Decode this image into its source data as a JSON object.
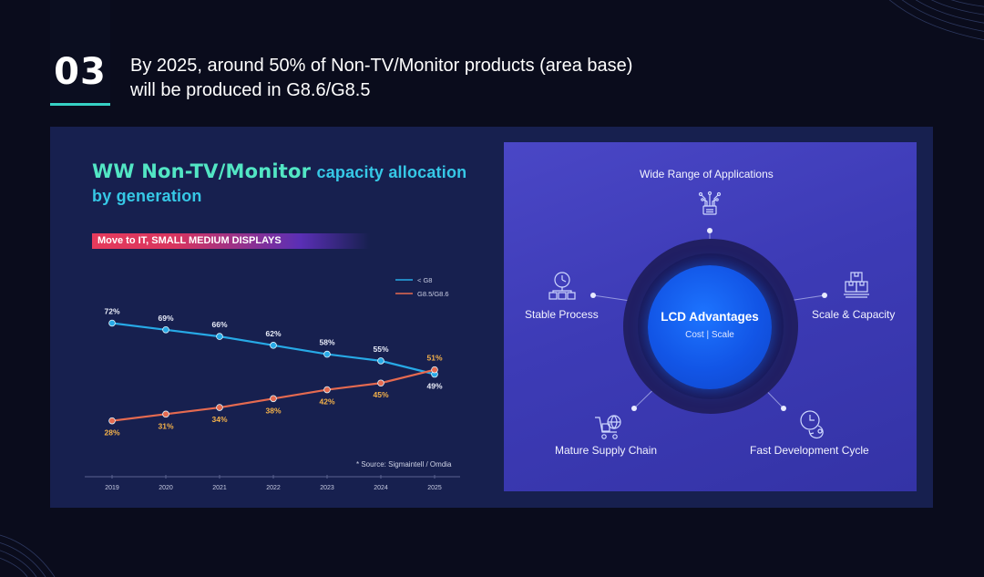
{
  "section": {
    "number": "03",
    "headline_line1": "By 2025, around 50% of Non-TV/Monitor products (area base)",
    "headline_line2": "will be produced in G8.6/G8.5"
  },
  "chart_title": {
    "part1": "WW Non-TV/Monitor",
    "part2": "capacity allocation",
    "part3": "by generation"
  },
  "tag": "Move to IT, SMALL MEDIUM DISPLAYS",
  "source": "* Source: Sigmaintell / Omdia",
  "chart_data": {
    "type": "line",
    "title": "WW Non-TV/Monitor capacity allocation by generation",
    "x": [
      "2019",
      "2020",
      "2021",
      "2022",
      "2023",
      "2024",
      "2025"
    ],
    "ylim": [
      0,
      100
    ],
    "series": [
      {
        "name": "< G8",
        "color": "#27a9e6",
        "values": [
          72,
          69,
          66,
          62,
          58,
          55,
          49
        ],
        "labels": [
          "72%",
          "69%",
          "66%",
          "62%",
          "58%",
          "55%",
          "49%"
        ]
      },
      {
        "name": "G8.5/G8.6",
        "color": "#e56a50",
        "values": [
          28,
          31,
          34,
          38,
          42,
          45,
          51
        ],
        "labels": [
          "28%",
          "31%",
          "34%",
          "38%",
          "42%",
          "45%",
          "51%"
        ]
      }
    ],
    "legend": "top-right"
  },
  "advantages": {
    "center_title": "LCD Advantages",
    "center_sub": "Cost | Scale",
    "items": {
      "wide": "Wide Range of Applications",
      "stable": "Stable Process",
      "scale": "Scale & Capacity",
      "supply": "Mature Supply Chain",
      "fast": "Fast Development Cycle"
    }
  },
  "colors": {
    "accent": "#36d1c4",
    "panel": "#17204f",
    "adv_panel": "#3f3db8"
  }
}
